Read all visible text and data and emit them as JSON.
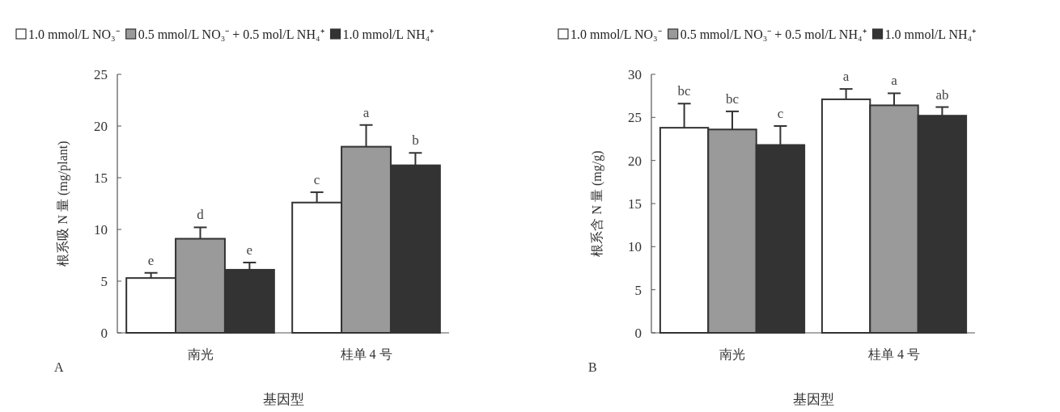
{
  "chart_data": [
    {
      "type": "bar",
      "ylabel": "根系吸 N 量 (mg/plant)",
      "xlabel": "基因型",
      "categories": [
        "南光",
        "桂单 4 号"
      ],
      "ylim": [
        0,
        25
      ],
      "yticks": [
        0,
        5,
        10,
        15,
        20,
        25
      ],
      "legend": "top",
      "grid": false,
      "annotations": [
        "A"
      ],
      "series": [
        {
          "name": "1.0 mmol/L NO₃⁻",
          "color": "#ffffff",
          "values": [
            5.3,
            12.6
          ],
          "errors": [
            0.5,
            1.0
          ],
          "value_labels": [
            "e",
            "c"
          ]
        },
        {
          "name": "0.5 mmol/L NO₃⁻ + 0.5 mol/L NH₄⁺",
          "color": "#9a9a9a",
          "values": [
            9.1,
            18.0
          ],
          "errors": [
            1.1,
            2.1
          ],
          "value_labels": [
            "d",
            "a"
          ]
        },
        {
          "name": "1.0 mmol/L NH₄⁺",
          "color": "#333333",
          "values": [
            6.1,
            16.2
          ],
          "errors": [
            0.7,
            1.2
          ],
          "value_labels": [
            "e",
            "b"
          ]
        }
      ]
    },
    {
      "type": "bar",
      "ylabel": "根系含 N 量 (mg/g)",
      "xlabel": "基因型",
      "categories": [
        "南光",
        "桂单 4 号"
      ],
      "ylim": [
        0,
        30
      ],
      "yticks": [
        0,
        5,
        10,
        15,
        20,
        25,
        30
      ],
      "legend": "top",
      "grid": false,
      "annotations": [
        "B"
      ],
      "series": [
        {
          "name": "1.0 mmol/L NO₃⁻",
          "color": "#ffffff",
          "values": [
            23.8,
            27.1
          ],
          "errors": [
            2.8,
            1.2
          ],
          "value_labels": [
            "bc",
            "a"
          ]
        },
        {
          "name": "0.5 mmol/L NO₃⁻ + 0.5 mol/L NH₄⁺",
          "color": "#9a9a9a",
          "values": [
            23.6,
            26.4
          ],
          "errors": [
            2.1,
            1.4
          ],
          "value_labels": [
            "bc",
            "a"
          ]
        },
        {
          "name": "1.0 mmol/L NH₄⁺",
          "color": "#333333",
          "values": [
            21.8,
            25.2
          ],
          "errors": [
            2.2,
            1.0
          ],
          "value_labels": [
            "c",
            "ab"
          ]
        }
      ]
    }
  ]
}
